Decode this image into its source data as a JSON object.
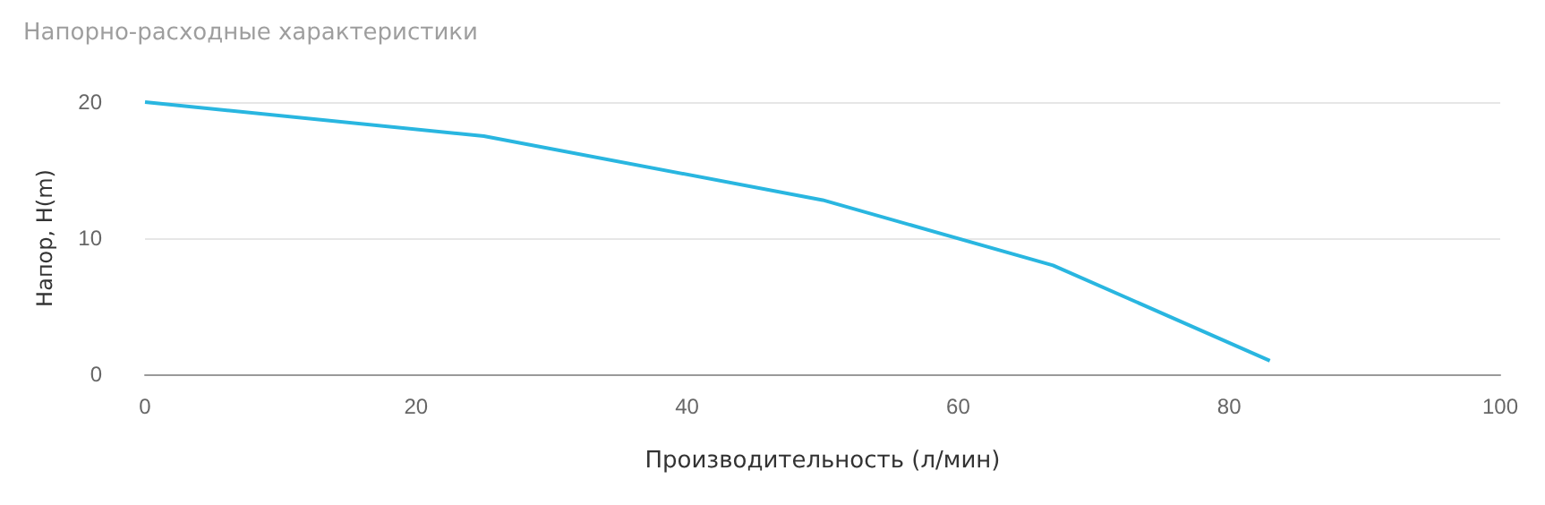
{
  "chart_data": {
    "type": "line",
    "title": "Напорно-расходные характеристики",
    "xlabel": "Производительность (л/мин)",
    "ylabel": "Напор, H(m)",
    "x": [
      0,
      25,
      50,
      67,
      83
    ],
    "series": [
      {
        "color": "#29b6e0",
        "values": [
          20,
          17.5,
          12.8,
          8,
          1
        ]
      }
    ],
    "xlim": [
      0,
      100
    ],
    "xticks": [
      0,
      20,
      40,
      60,
      80,
      100
    ],
    "ylim": [
      0,
      20
    ],
    "yticks": [
      0,
      10,
      20
    ],
    "grid": "y",
    "marker": "none",
    "line_style": "solid"
  }
}
